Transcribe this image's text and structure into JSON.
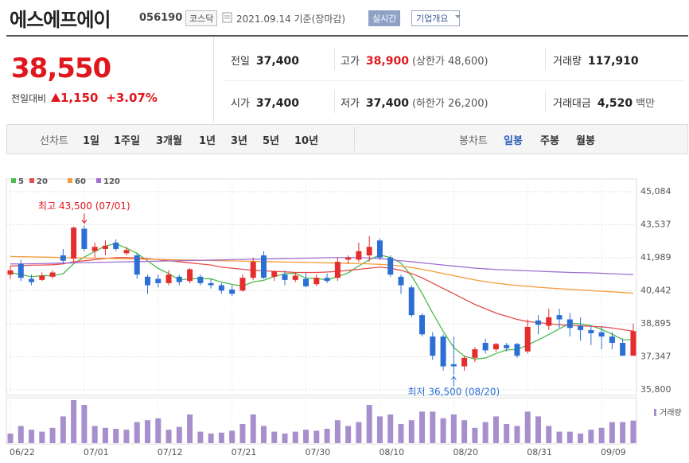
{
  "header": {
    "title": "에스에프에이",
    "code": "056190",
    "market": "코스닥",
    "date": "2021.09.14 기준(장마감)",
    "realtime": "실시간",
    "company": "기업개요"
  },
  "summary": {
    "price": "38,550",
    "change_label": "전일대비",
    "change": "1,150",
    "change_rate": "+3.07%",
    "items": [
      {
        "label": "전일",
        "value": "37,400"
      },
      {
        "label": "고가",
        "value": "38,900",
        "note": "(상한가 48,600)"
      },
      {
        "label": "거래량",
        "value": "117,910"
      },
      {
        "label": "시가",
        "value": "37,400"
      },
      {
        "label": "저가",
        "value": "37,400",
        "note": "(하한가 26,200)"
      },
      {
        "label": "거래대금",
        "value": "4,520",
        "unit": "백만"
      }
    ]
  },
  "toolbar": {
    "line_label": "선차트",
    "line_periods": [
      "1일",
      "1주일",
      "3개월",
      "1년",
      "3년",
      "5년",
      "10년"
    ],
    "candle_label": "봉차트",
    "candle_periods": [
      "일봉",
      "주봉",
      "월봉"
    ]
  },
  "chart_data": {
    "type": "candlestick",
    "categories": [
      "06/22",
      null,
      null,
      null,
      null,
      null,
      null,
      "07/01",
      null,
      null,
      null,
      null,
      null,
      null,
      "07/12",
      null,
      null,
      null,
      null,
      null,
      null,
      "07/21",
      null,
      null,
      null,
      null,
      null,
      null,
      "07/30",
      null,
      null,
      null,
      null,
      null,
      null,
      "08/10",
      null,
      null,
      null,
      null,
      null,
      null,
      "08/20",
      null,
      null,
      null,
      null,
      null,
      null,
      "08/31",
      null,
      null,
      null,
      null,
      null,
      null,
      "09/09",
      null,
      null,
      null
    ],
    "open": [
      41200,
      41700,
      41000,
      40950,
      41100,
      42100,
      41950,
      43350,
      42300,
      42400,
      42700,
      42200,
      42100,
      41100,
      41000,
      40800,
      41100,
      40900,
      41100,
      40800,
      40700,
      40500,
      40450,
      41050,
      42100,
      41100,
      41200,
      40950,
      41000,
      40750,
      41050,
      41050,
      41900,
      41900,
      42100,
      42800,
      42000,
      41100,
      40600,
      39300,
      38300,
      38300,
      37000,
      36900,
      37300,
      38000,
      37700,
      37900,
      37950,
      37600,
      39050,
      38800,
      39300,
      39100,
      38800,
      38600,
      38500,
      38300,
      38000,
      37400
    ],
    "high": [
      41600,
      41900,
      41200,
      41300,
      41400,
      42400,
      43450,
      43500,
      42700,
      42800,
      42850,
      42500,
      42200,
      41200,
      41200,
      41400,
      41200,
      41500,
      41200,
      41000,
      40800,
      40700,
      41200,
      42000,
      42300,
      41400,
      41400,
      41300,
      41300,
      41200,
      41250,
      42000,
      42100,
      42700,
      43000,
      42900,
      42100,
      41200,
      40700,
      39400,
      38500,
      38400,
      38300,
      37400,
      37800,
      38200,
      38000,
      38000,
      38000,
      39100,
      39300,
      39600,
      39600,
      39400,
      39200,
      38800,
      38800,
      38500,
      38200,
      38900
    ],
    "low": [
      41000,
      40900,
      40700,
      40900,
      41000,
      41700,
      41800,
      42300,
      42000,
      42100,
      42300,
      42100,
      41000,
      40300,
      40600,
      40700,
      40700,
      40800,
      40700,
      40550,
      40300,
      40200,
      40400,
      40950,
      41000,
      40900,
      40700,
      40850,
      40600,
      40650,
      40800,
      40900,
      41700,
      41800,
      41800,
      41900,
      41100,
      40300,
      39200,
      38300,
      37200,
      36700,
      36500,
      36700,
      37100,
      37500,
      37600,
      37600,
      37300,
      37500,
      38400,
      38600,
      38700,
      38300,
      38100,
      37900,
      37700,
      37700,
      37400,
      37400
    ],
    "close": [
      41400,
      41050,
      40850,
      41150,
      41300,
      41850,
      43400,
      42400,
      42500,
      42550,
      42400,
      42350,
      41200,
      40700,
      40800,
      41200,
      40850,
      41450,
      40800,
      40700,
      40450,
      40300,
      41050,
      41800,
      41050,
      41350,
      40950,
      41150,
      40650,
      41050,
      40900,
      41800,
      42000,
      42300,
      42500,
      42000,
      41200,
      40700,
      39300,
      38400,
      37400,
      36900,
      36900,
      37300,
      37700,
      37650,
      37950,
      37750,
      37400,
      38750,
      38850,
      39200,
      39100,
      38700,
      38600,
      38450,
      38300,
      38000,
      37400,
      38550
    ],
    "up_color": "#e62d2d",
    "down_color": "#2b6fd4",
    "series": [
      {
        "name": "5",
        "color": "#4cbb4c",
        "values": [
          41300,
          41200,
          41100,
          41150,
          41150,
          41240,
          41710,
          42020,
          42290,
          42540,
          42650,
          42440,
          42200,
          41840,
          41490,
          41250,
          40950,
          41000,
          41020,
          41000,
          40850,
          40740,
          40660,
          40860,
          40930,
          41110,
          41240,
          41260,
          41030,
          41030,
          40940,
          41110,
          41280,
          41610,
          41900,
          42120,
          42000,
          41740,
          41140,
          40320,
          39400,
          38540,
          37780,
          37380,
          37240,
          37290,
          37500,
          37670,
          37690,
          37900,
          38140,
          38390,
          38660,
          38920,
          38890,
          38810,
          38630,
          38410,
          38150,
          38140
        ]
      },
      {
        "name": "20",
        "color": "#e84c4c",
        "values": [
          41600,
          41620,
          41640,
          41650,
          41660,
          41700,
          41800,
          41850,
          41900,
          41950,
          42000,
          42000,
          41980,
          41950,
          41900,
          41850,
          41800,
          41750,
          41700,
          41650,
          41550,
          41500,
          41450,
          41400,
          41380,
          41350,
          41330,
          41300,
          41300,
          41300,
          41320,
          41350,
          41400,
          41450,
          41500,
          41550,
          41500,
          41400,
          41250,
          41050,
          40800,
          40550,
          40300,
          40050,
          39800,
          39600,
          39400,
          39250,
          39100,
          39000,
          38950,
          38900,
          38850,
          38820,
          38800,
          38780,
          38750,
          38700,
          38620,
          38550
        ]
      },
      {
        "name": "60",
        "color": "#f59b3b",
        "values": [
          42050,
          42040,
          42030,
          42020,
          42010,
          42000,
          41990,
          41980,
          41970,
          41960,
          41950,
          41940,
          41930,
          41920,
          41910,
          41900,
          41890,
          41880,
          41870,
          41860,
          41850,
          41840,
          41830,
          41820,
          41810,
          41800,
          41790,
          41780,
          41770,
          41760,
          41750,
          41740,
          41730,
          41720,
          41700,
          41680,
          41650,
          41600,
          41530,
          41450,
          41350,
          41250,
          41150,
          41050,
          40950,
          40870,
          40800,
          40740,
          40690,
          40650,
          40610,
          40570,
          40540,
          40510,
          40480,
          40450,
          40420,
          40390,
          40360,
          40330
        ]
      },
      {
        "name": "120",
        "color": "#a070d0",
        "values": [
          41700,
          41700,
          41710,
          41720,
          41730,
          41740,
          41750,
          41760,
          41770,
          41780,
          41790,
          41800,
          41810,
          41820,
          41830,
          41840,
          41850,
          41860,
          41870,
          41880,
          41890,
          41900,
          41910,
          41920,
          41930,
          41940,
          41950,
          41960,
          41970,
          41980,
          41990,
          42000,
          42000,
          41990,
          41980,
          41950,
          41900,
          41850,
          41800,
          41750,
          41700,
          41650,
          41600,
          41550,
          41500,
          41470,
          41440,
          41420,
          41400,
          41380,
          41360,
          41340,
          41320,
          41300,
          41290,
          41280,
          41260,
          41240,
          41220,
          41200
        ]
      }
    ],
    "volume": {
      "name": "거래량",
      "color": "#a68fcc",
      "values": [
        50000,
        90000,
        70000,
        60000,
        80000,
        140000,
        225000,
        200000,
        90000,
        80000,
        75000,
        70000,
        110000,
        120000,
        130000,
        70000,
        85000,
        150000,
        60000,
        50000,
        55000,
        65000,
        100000,
        150000,
        90000,
        60000,
        50000,
        60000,
        70000,
        65000,
        75000,
        120000,
        90000,
        110000,
        200000,
        140000,
        150000,
        100000,
        120000,
        165000,
        165000,
        130000,
        150000,
        120000,
        80000,
        110000,
        140000,
        100000,
        90000,
        165000,
        140000,
        90000,
        60000,
        60000,
        50000,
        70000,
        80000,
        110000,
        110000,
        117910
      ]
    },
    "ylim": [
      35540,
      45680
    ],
    "yticks": [
      {
        "value": 35800,
        "label": "35,800"
      },
      {
        "value": 37347,
        "label": "37,347"
      },
      {
        "value": 38895,
        "label": "38,895"
      },
      {
        "value": 40442,
        "label": "40,442"
      },
      {
        "value": 41989,
        "label": "41,989"
      },
      {
        "value": 43537,
        "label": "43,537"
      },
      {
        "value": 45084,
        "label": "45,084"
      }
    ],
    "grid": true,
    "annotations": {
      "high": "최고 43,500 (07/01)",
      "low": "최저 36,500 (08/20)"
    }
  }
}
